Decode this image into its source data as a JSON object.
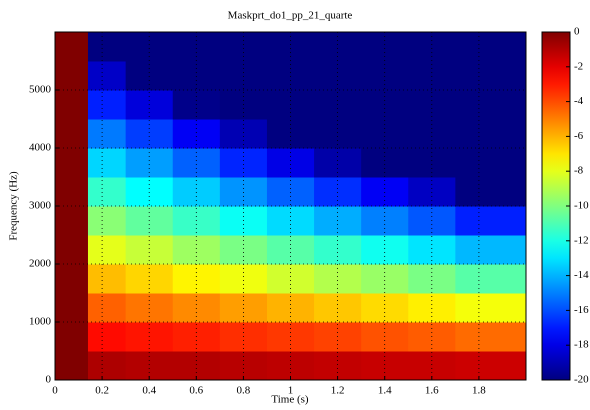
{
  "chart_data": {
    "type": "heatmap",
    "title": "Maskprt_do1_pp_21_quarte",
    "xlabel": "Time (s)",
    "ylabel": "Frequency (Hz)",
    "x_edges": [
      0,
      0.14,
      0.3,
      0.5,
      0.7,
      0.9,
      1.1,
      1.3,
      1.5,
      1.7,
      2.0
    ],
    "y_edges": [
      0,
      500,
      1000,
      1500,
      2000,
      2500,
      3000,
      3500,
      4000,
      4500,
      5000,
      5500,
      6000
    ],
    "z": [
      [
        0,
        -0.9,
        -1.0,
        -1.0,
        -1.1,
        -1.2,
        -1.3,
        -1.4,
        -1.4,
        -1.5
      ],
      [
        0,
        -2.7,
        -2.9,
        -3.1,
        -3.4,
        -3.6,
        -3.8,
        -4.1,
        -4.3,
        -4.6
      ],
      [
        0,
        -4.4,
        -4.8,
        -5.2,
        -5.6,
        -6.0,
        -6.4,
        -6.8,
        -7.2,
        -7.7
      ],
      [
        0,
        -6.2,
        -6.7,
        -7.3,
        -7.8,
        -8.4,
        -9.0,
        -9.5,
        -10.1,
        -10.8
      ],
      [
        0,
        -8.0,
        -8.6,
        -9.4,
        -10.1,
        -10.8,
        -11.5,
        -12.2,
        -13.0,
        -13.9
      ],
      [
        0,
        -9.8,
        -10.6,
        -11.4,
        -12.3,
        -13.2,
        -14.1,
        -15.0,
        -15.8,
        -16.9
      ],
      [
        0,
        -11.5,
        -12.5,
        -13.5,
        -14.6,
        -15.6,
        -16.6,
        -17.7,
        -18.7,
        -20
      ],
      [
        0,
        -13.3,
        -14.4,
        -15.6,
        -16.8,
        -18.0,
        -19.2,
        -20,
        -20,
        -20
      ],
      [
        0,
        -15.1,
        -16.3,
        -17.7,
        -19.0,
        -20,
        -20,
        -20,
        -20,
        -20
      ],
      [
        0,
        -16.9,
        -18.2,
        -19.8,
        -20,
        -20,
        -20,
        -20,
        -20,
        -20
      ],
      [
        0,
        -18.6,
        -20,
        -20,
        -20,
        -20,
        -20,
        -20,
        -20,
        -20
      ],
      [
        0,
        -20,
        -20,
        -20,
        -20,
        -20,
        -20,
        -20,
        -20,
        -20
      ]
    ],
    "xlim": [
      0,
      2.0
    ],
    "xticks": [
      0,
      0.2,
      0.4,
      0.6,
      0.8,
      1,
      1.2,
      1.4,
      1.6,
      1.8
    ],
    "ylim": [
      0,
      6000
    ],
    "yticks": [
      0,
      1000,
      2000,
      3000,
      4000,
      5000
    ],
    "colormap": "jet",
    "clim": [
      -20,
      0
    ],
    "cticks": [
      0,
      -2,
      -4,
      -6,
      -8,
      -10,
      -12,
      -14,
      -16,
      -18,
      -20
    ],
    "grid": true
  }
}
